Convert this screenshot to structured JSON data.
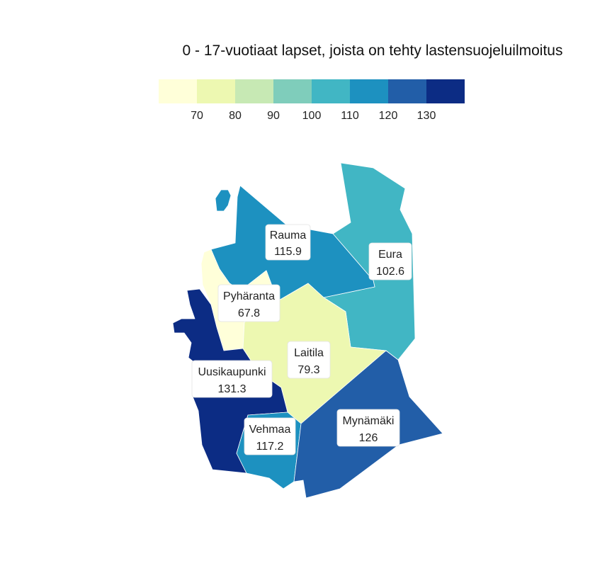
{
  "title": "0 - 17-vuotiaat lapset, joista on tehty lastensuojeluilmoitus",
  "legend": {
    "colors": [
      "#ffffd9",
      "#edf8b1",
      "#c7e9b4",
      "#7fcdbb",
      "#41b6c4",
      "#1d91c0",
      "#225ea8",
      "#0c2c84"
    ],
    "ticks": [
      "70",
      "80",
      "90",
      "100",
      "110",
      "120",
      "130"
    ]
  },
  "chart_data": {
    "type": "choropleth",
    "title": "0 - 17-vuotiaat lapset, joista on tehty lastensuojeluilmoitus",
    "regions": [
      {
        "id": "rauma",
        "name": "Rauma",
        "value": "115.9",
        "color": "#1d91c0"
      },
      {
        "id": "eura",
        "name": "Eura",
        "value": "102.6",
        "color": "#41b6c4"
      },
      {
        "id": "pyharanta",
        "name": "Pyhäranta",
        "value": "67.8",
        "color": "#ffffd9"
      },
      {
        "id": "laitila",
        "name": "Laitila",
        "value": "79.3",
        "color": "#edf8b1"
      },
      {
        "id": "uusikaupunki",
        "name": "Uusikaupunki",
        "value": "131.3",
        "color": "#0c2c84"
      },
      {
        "id": "mynamaki",
        "name": "Mynämäki",
        "value": "126",
        "color": "#225ea8"
      },
      {
        "id": "vehmaa",
        "name": "Vehmaa",
        "value": "117.2",
        "color": "#1d91c0"
      }
    ]
  }
}
